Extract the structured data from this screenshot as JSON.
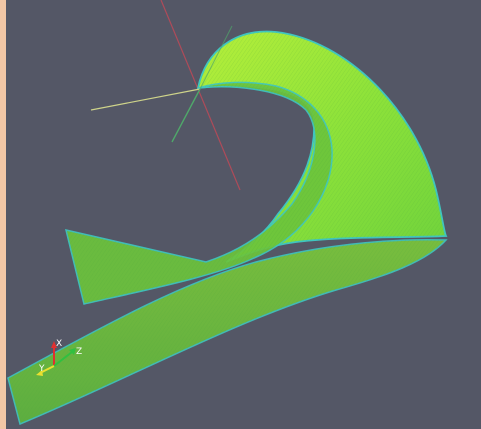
{
  "scene": {
    "background": "#545766",
    "border_color": "#f2c7a6",
    "surface_color_main": "#7ed63a",
    "surface_color_light": "#a6ea3a",
    "surface_edge_color": "#3fc6c0",
    "center_axis_colors": {
      "x": "#b84a58",
      "y": "#cfd48a",
      "z": "#4fa86a"
    }
  },
  "orientation_axes": {
    "x_label": "X",
    "y_label": "Y",
    "z_label": "Z",
    "x_color": "#e03030",
    "y_color": "#e8e030",
    "z_color": "#30c040"
  }
}
